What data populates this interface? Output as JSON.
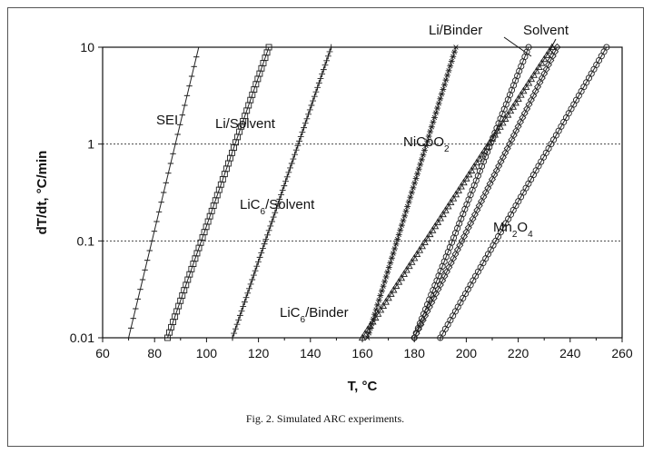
{
  "chart_data": {
    "type": "line",
    "caption": "Fig. 2.  Simulated ARC experiments.",
    "xlabel": "T, °C",
    "ylabel": "dT/dt, °C/min",
    "xlim": [
      60,
      260
    ],
    "ylim": [
      0.01,
      10
    ],
    "yscale": "log",
    "x_ticks": [
      "60",
      "80",
      "100",
      "120",
      "140",
      "160",
      "180",
      "200",
      "220",
      "240",
      "260"
    ],
    "y_ticks": [
      "0.01",
      "0.1",
      "1",
      "10"
    ],
    "grid": "horizontal dotted",
    "series": [
      {
        "name": "SEI",
        "label_html": "SEI",
        "marker": "dash",
        "x": [
          70,
          97
        ],
        "y": [
          0.01,
          10
        ]
      },
      {
        "name": "Li/Solvent",
        "label_html": "Li/Solvent",
        "marker": "square",
        "x": [
          85,
          124
        ],
        "y": [
          0.01,
          10
        ]
      },
      {
        "name": "LiC6/Solvent",
        "label_html": "LiC<tspan baseline-shift=\"sub\" font-size=\"10\">6</tspan>/Solvent",
        "marker": "plus",
        "x": [
          110,
          148
        ],
        "y": [
          0.01,
          10
        ]
      },
      {
        "name": "NiCoO2",
        "label_html": "NiCoO<tspan baseline-shift=\"sub\" font-size=\"10\">2</tspan>",
        "marker": "star",
        "x": [
          162,
          196
        ],
        "y": [
          0.01,
          10
        ]
      },
      {
        "name": "LiC6/Binder",
        "label_html": "LiC<tspan baseline-shift=\"sub\" font-size=\"10\">6</tspan>/Binder",
        "marker": "triangle",
        "x": [
          160,
          233
        ],
        "y": [
          0.01,
          10
        ]
      },
      {
        "name": "Li/Binder",
        "label_html": "Li/Binder",
        "marker": "circle",
        "x": [
          180,
          224
        ],
        "y": [
          0.01,
          10
        ]
      },
      {
        "name": "Solvent",
        "label_html": "Solvent",
        "marker": "diamond",
        "x": [
          180,
          235
        ],
        "y": [
          0.01,
          10
        ]
      },
      {
        "name": "Mn2O4",
        "label_html": "Mn<tspan baseline-shift=\"sub\" font-size=\"10\">2</tspan>O<tspan baseline-shift=\"sub\" font-size=\"10\">4</tspan>",
        "marker": "circle",
        "x": [
          190,
          254
        ],
        "y": [
          0.01,
          10
        ]
      }
    ]
  }
}
